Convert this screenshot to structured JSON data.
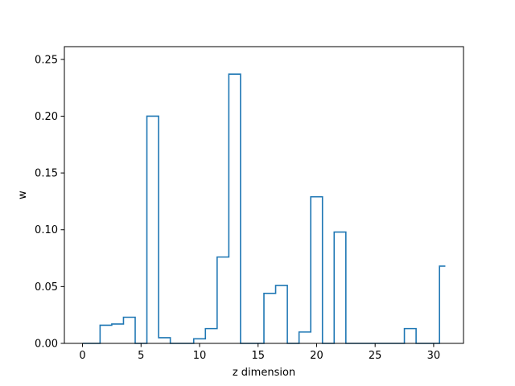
{
  "chart_data": {
    "type": "line",
    "style": "step-post",
    "xlabel": "z dimension",
    "ylabel": "w",
    "xlim": [
      -1.55,
      32.55
    ],
    "ylim": [
      0,
      0.2612
    ],
    "xticks": [
      0,
      5,
      10,
      15,
      20,
      25,
      30
    ],
    "yticks": [
      0.0,
      0.05,
      0.1,
      0.15,
      0.2,
      0.25
    ],
    "xtick_labels": [
      "0",
      "5",
      "10",
      "15",
      "20",
      "25",
      "30"
    ],
    "ytick_labels": [
      "0.00",
      "0.05",
      "0.10",
      "0.15",
      "0.20",
      "0.25"
    ],
    "grid": false,
    "color": "#1f77b4",
    "x": [
      0,
      1,
      2,
      3,
      4,
      5,
      6,
      7,
      8,
      9,
      10,
      11,
      12,
      13,
      14,
      15,
      16,
      17,
      18,
      19,
      20,
      21,
      22,
      23,
      24,
      25,
      26,
      27,
      28,
      29,
      30,
      31
    ],
    "values": [
      0.0,
      0.0,
      0.016,
      0.017,
      0.023,
      0.0,
      0.2,
      0.005,
      0.0,
      0.0,
      0.004,
      0.013,
      0.076,
      0.237,
      0.0,
      0.0,
      0.044,
      0.051,
      0.0,
      0.01,
      0.129,
      0.0,
      0.098,
      0.0,
      0.0,
      0.0,
      0.0,
      0.0,
      0.013,
      0.0,
      0.0,
      0.068
    ]
  }
}
